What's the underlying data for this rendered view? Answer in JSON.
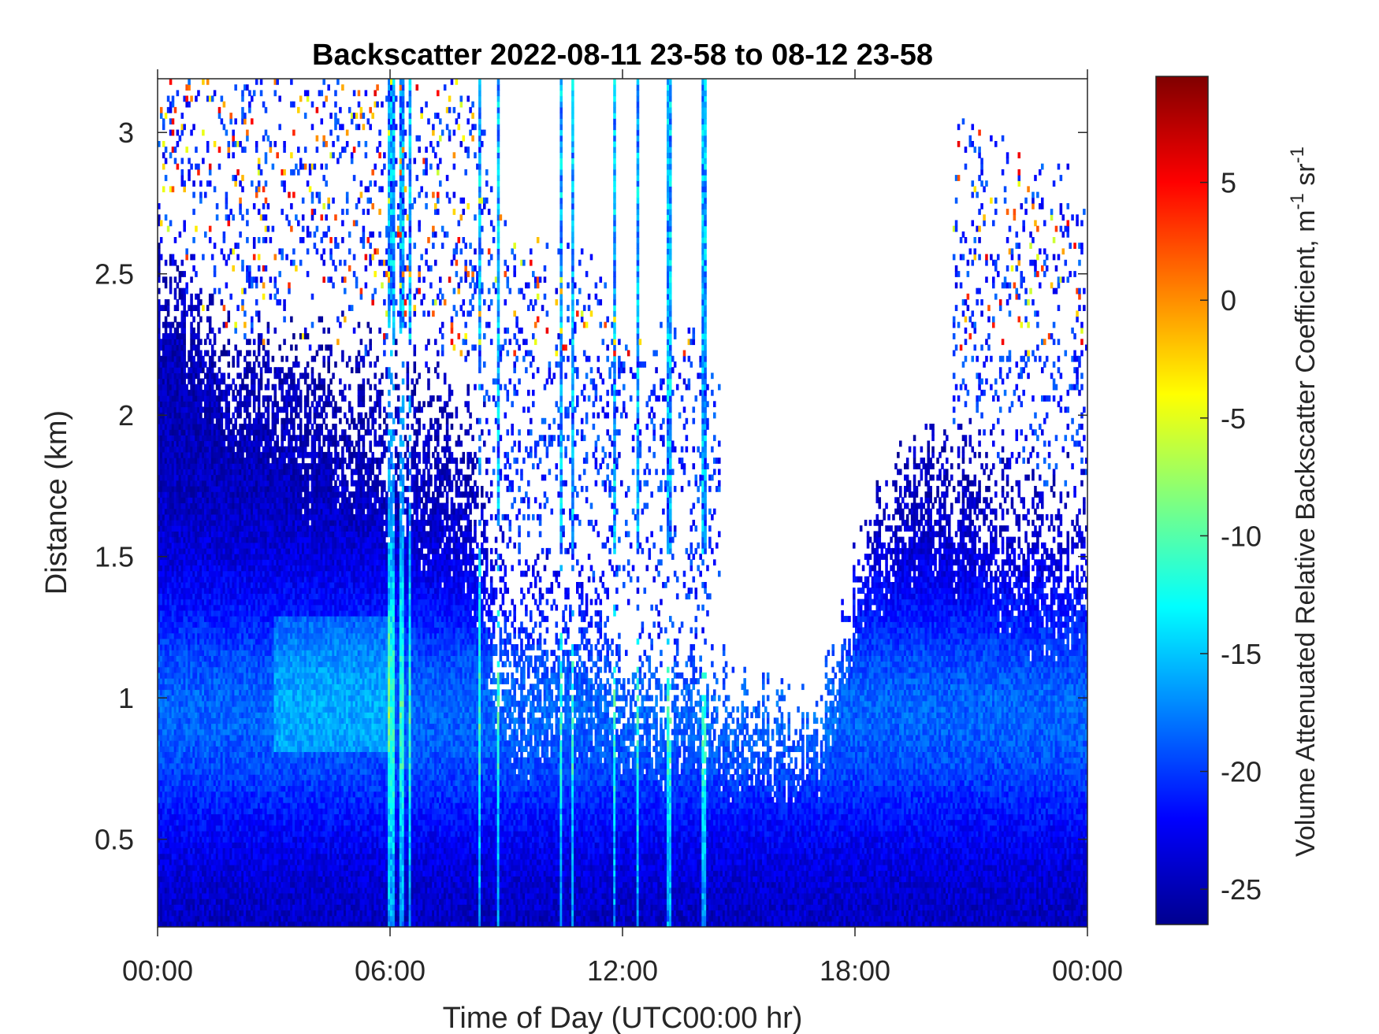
{
  "chart_data": {
    "type": "heatmap",
    "title": "Backscatter 2022-08-11 23-58 to 08-12 23-58",
    "xlabel": "Time of Day (UTC00:00 hr)",
    "ylabel": "Distance (km)",
    "xlim": [
      0,
      24
    ],
    "ylim": [
      0.19,
      3.19
    ],
    "x_ticks": [
      {
        "value": 0,
        "label": "00:00"
      },
      {
        "value": 6,
        "label": "06:00"
      },
      {
        "value": 12,
        "label": "12:00"
      },
      {
        "value": 18,
        "label": "18:00"
      },
      {
        "value": 24,
        "label": "00:00"
      }
    ],
    "y_ticks": [
      {
        "value": 0.5,
        "label": "0.5"
      },
      {
        "value": 1,
        "label": "1"
      },
      {
        "value": 1.5,
        "label": "1.5"
      },
      {
        "value": 2,
        "label": "2"
      },
      {
        "value": 2.5,
        "label": "2.5"
      },
      {
        "value": 3,
        "label": "3"
      }
    ],
    "colorbar": {
      "label_main": "Volume Attenuated Relative Backscatter Coefficient, m",
      "label_exp1": "-1",
      "label_mid": " sr",
      "label_exp2": "-1",
      "clim": [
        -26.5,
        9.5
      ],
      "colormap": "jet",
      "ticks": [
        {
          "value": -25,
          "label": "-25"
        },
        {
          "value": -20,
          "label": "-20"
        },
        {
          "value": -15,
          "label": "-15"
        },
        {
          "value": -10,
          "label": "-10"
        },
        {
          "value": -5,
          "label": "-5"
        },
        {
          "value": 0,
          "label": "0"
        },
        {
          "value": 5,
          "label": "5"
        }
      ]
    },
    "grid": false,
    "background_color": "#ffffff"
  }
}
